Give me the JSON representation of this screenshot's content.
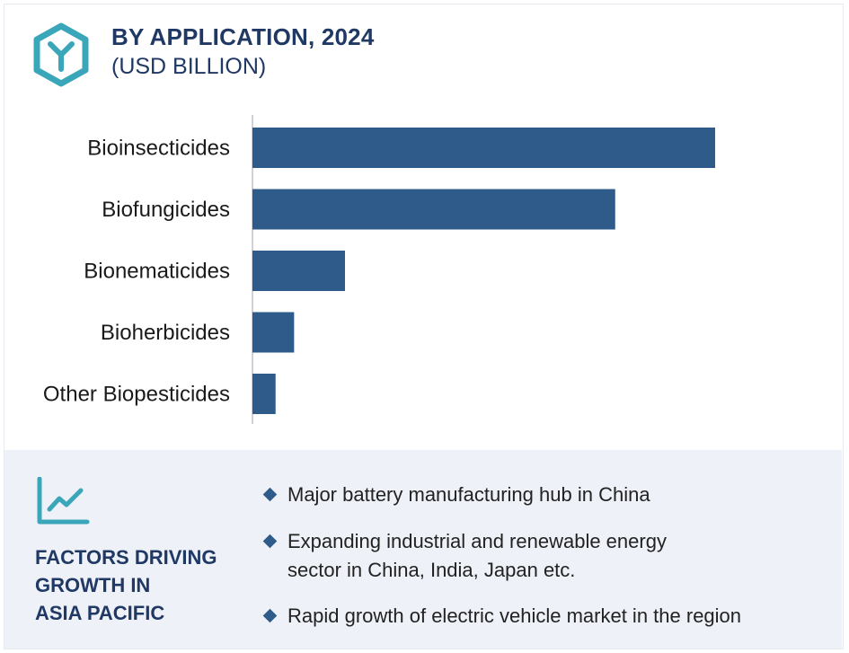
{
  "header": {
    "title": "BY APPLICATION, 2024",
    "subtitle": "(USD BILLION)",
    "logo_icon": "hexagon-y-logo-icon",
    "accent_color": "#3aa6b9"
  },
  "chart_data": {
    "type": "bar",
    "orientation": "horizontal",
    "title": "BY APPLICATION, 2024",
    "subtitle": "(USD BILLION)",
    "categories": [
      "Bioinsecticides",
      "Biofungicides",
      "Bionematicides",
      "Bioherbicides",
      "Other Biopesticides"
    ],
    "values": [
      5.0,
      3.92,
      1.0,
      0.45,
      0.25
    ],
    "xlim": [
      0,
      5.0
    ],
    "grid": false,
    "legend": "none",
    "bar_color": "#2e5b8a"
  },
  "panel": {
    "icon": "line-chart-icon",
    "heading_lines": [
      "FACTORS DRIVING",
      "GROWTH IN",
      "ASIA PACIFIC"
    ],
    "factors": [
      "Major battery manufacturing hub in China",
      "Expanding industrial and renewable energy\nsector in China, India, Japan etc.",
      "Rapid growth of electric vehicle market in the region"
    ]
  }
}
